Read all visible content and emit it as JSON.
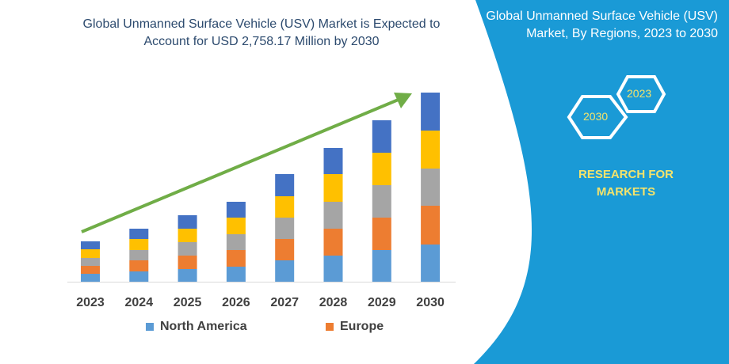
{
  "chart_data": {
    "type": "bar",
    "stacked": true,
    "title": "Global Unmanned Surface Vehicle (USV) Market is Expected to Account for USD 2,758.17 Million by 2030",
    "categories": [
      "2023",
      "2024",
      "2025",
      "2026",
      "2027",
      "2028",
      "2029",
      "2030"
    ],
    "series": [
      {
        "name": "North America",
        "color": "#5b9bd5",
        "values": [
          10,
          13,
          16,
          19,
          27,
          33,
          40,
          47
        ]
      },
      {
        "name": "Europe",
        "color": "#ed7d31",
        "values": [
          10,
          14,
          17,
          21,
          27,
          34,
          41,
          49
        ]
      },
      {
        "color": "#a5a5a5",
        "values": [
          10,
          13,
          17,
          20,
          27,
          34,
          41,
          47
        ]
      },
      {
        "color": "#ffc000",
        "values": [
          11,
          14,
          17,
          21,
          27,
          35,
          41,
          48
        ]
      },
      {
        "color": "#4472c4",
        "values": [
          10,
          13,
          17,
          20,
          28,
          33,
          41,
          48
        ]
      }
    ],
    "trend_arrow_color": "#70ad47",
    "grid": false,
    "legend_position": "bottom"
  },
  "panel": {
    "title": "Global Unmanned Surface Vehicle (USV) Market, By Regions, 2023 to 2030",
    "hex_labels": [
      "2023",
      "2030"
    ],
    "brand": "RESEARCH FOR MARKETS",
    "color": "#1a9ad6"
  }
}
